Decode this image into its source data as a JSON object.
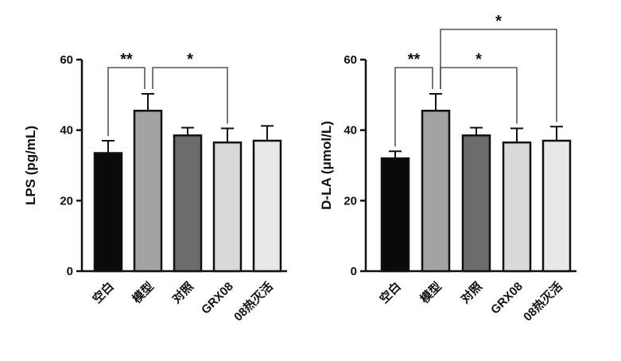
{
  "chart_data": [
    {
      "type": "bar",
      "ylabel": "LPS (pg/mL)",
      "ylim": [
        0,
        60
      ],
      "yticks": [
        0,
        20,
        40,
        60
      ],
      "grid": false,
      "categories": [
        "空白",
        "模型",
        "对照",
        "GRX08",
        "08热灭活"
      ],
      "values": [
        33.5,
        45.5,
        38.5,
        36.5,
        37
      ],
      "errors": [
        3.5,
        4.8,
        2.2,
        4.0,
        4.2
      ],
      "colors": [
        "#0a0a0a",
        "#a3a3a3",
        "#6c6c6c",
        "#d9d9d9",
        "#e8e8e8"
      ],
      "significance": [
        {
          "from": 0,
          "to": 1,
          "label": "**"
        },
        {
          "from": 1,
          "to": 3,
          "label": "*"
        }
      ]
    },
    {
      "type": "bar",
      "ylabel": "D-LA (μmol/L)",
      "ylim": [
        0,
        60
      ],
      "yticks": [
        0,
        20,
        40,
        60
      ],
      "grid": false,
      "categories": [
        "空白",
        "模型",
        "对照",
        "GRX08",
        "08热灭活"
      ],
      "values": [
        32,
        45.5,
        38.5,
        36.5,
        37
      ],
      "errors": [
        2.0,
        4.8,
        2.2,
        4.0,
        4.0
      ],
      "colors": [
        "#0a0a0a",
        "#a3a3a3",
        "#6c6c6c",
        "#d9d9d9",
        "#e8e8e8"
      ],
      "significance": [
        {
          "from": 0,
          "to": 1,
          "label": "**"
        },
        {
          "from": 1,
          "to": 3,
          "label": "*"
        },
        {
          "from": 1,
          "to": 4,
          "label": "*"
        }
      ]
    }
  ]
}
